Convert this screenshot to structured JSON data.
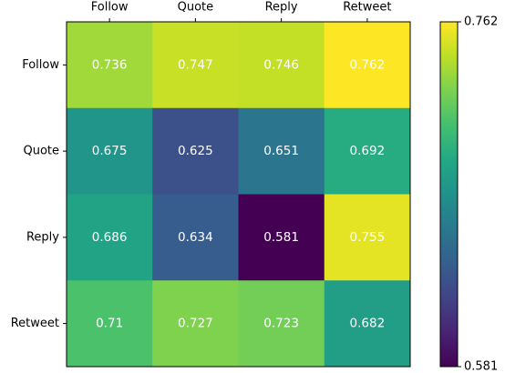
{
  "chart_data": {
    "type": "heatmap",
    "x_categories": [
      "Follow",
      "Quote",
      "Reply",
      "Retweet"
    ],
    "y_categories": [
      "Follow",
      "Quote",
      "Reply",
      "Retweet"
    ],
    "values": [
      [
        0.736,
        0.747,
        0.746,
        0.762
      ],
      [
        0.675,
        0.625,
        0.651,
        0.692
      ],
      [
        0.686,
        0.634,
        0.581,
        0.755
      ],
      [
        0.71,
        0.727,
        0.723,
        0.682
      ]
    ],
    "colormap": "viridis",
    "colorbar": {
      "lim": [
        0.581,
        0.762
      ],
      "ticks": [
        0.581,
        0.762
      ]
    }
  }
}
